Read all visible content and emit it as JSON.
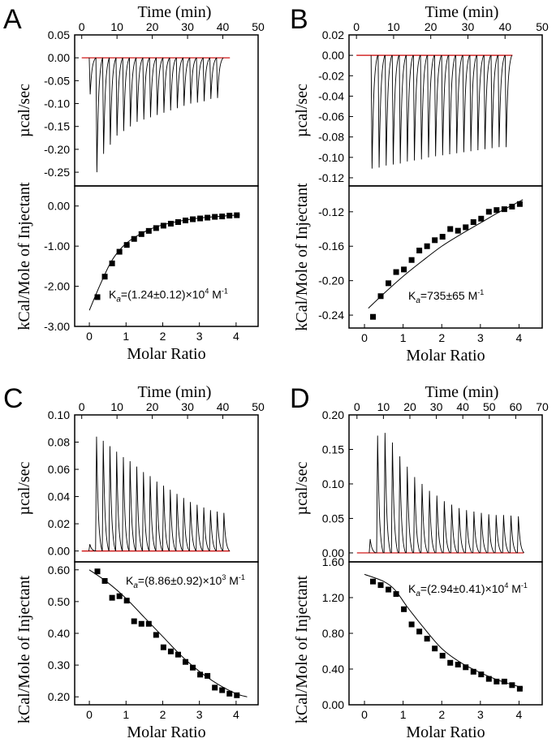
{
  "figure": {
    "background": "#ffffff",
    "trace_color": "#000000",
    "baseline_color": "#cc0000"
  },
  "chart_data": [
    {
      "panel": "A",
      "type": "line",
      "top": {
        "xlabel": "Time (min)",
        "ylabel": "µcal/sec",
        "xlim": [
          -2,
          50
        ],
        "ylim": [
          -0.28,
          0.05
        ],
        "xticks": [
          0,
          10,
          20,
          30,
          40,
          50
        ],
        "xtick_labels": [
          "0",
          "10",
          "20",
          "30",
          "40",
          "50"
        ],
        "yticks": [
          0.05,
          0.0,
          -0.05,
          -0.1,
          -0.15,
          -0.2,
          -0.25
        ],
        "ytick_labels": [
          "0.05",
          "0.00",
          "-0.05",
          "-0.10",
          "-0.15",
          "-0.20",
          "-0.25"
        ],
        "injection_times": [
          2.4,
          4.3,
          6.2,
          8.1,
          10.0,
          11.9,
          13.8,
          15.7,
          17.6,
          19.5,
          21.4,
          23.3,
          25.2,
          27.1,
          29.0,
          30.9,
          32.8,
          34.7,
          36.6,
          38.5
        ],
        "peak_heights": [
          -0.08,
          -0.25,
          -0.21,
          -0.19,
          -0.17,
          -0.16,
          -0.15,
          -0.14,
          -0.135,
          -0.13,
          -0.125,
          -0.12,
          -0.115,
          -0.11,
          -0.105,
          -0.1,
          -0.098,
          -0.095,
          -0.09,
          -0.088
        ],
        "baseline_range": [
          0,
          42
        ]
      },
      "bottom": {
        "xlabel": "Molar Ratio",
        "ylabel": "kCal/Mole of Injectant",
        "xlim": [
          -0.4,
          4.6
        ],
        "ylim": [
          -3.0,
          0.5
        ],
        "xticks": [
          0,
          1,
          2,
          3,
          4
        ],
        "xtick_labels": [
          "0",
          "1",
          "2",
          "3",
          "4"
        ],
        "yticks": [
          0.0,
          -1.0,
          -2.0,
          -3.0
        ],
        "ytick_labels": [
          "0.00",
          "-1.00",
          "-2.00",
          "-3.00"
        ],
        "x": [
          0.22,
          0.42,
          0.62,
          0.82,
          1.02,
          1.22,
          1.42,
          1.62,
          1.82,
          2.02,
          2.22,
          2.42,
          2.62,
          2.82,
          3.02,
          3.22,
          3.42,
          3.62,
          3.82,
          4.02
        ],
        "y": [
          -2.27,
          -1.76,
          -1.43,
          -1.14,
          -0.97,
          -0.82,
          -0.7,
          -0.62,
          -0.55,
          -0.49,
          -0.44,
          -0.4,
          -0.36,
          -0.33,
          -0.31,
          -0.29,
          -0.27,
          -0.26,
          -0.24,
          -0.23
        ],
        "fit_x": [
          0.0,
          0.3,
          0.6,
          0.9,
          1.2,
          1.6,
          2.0,
          2.5,
          3.0,
          3.5,
          4.1
        ],
        "fit_y": [
          -2.6,
          -1.95,
          -1.38,
          -1.02,
          -0.8,
          -0.6,
          -0.47,
          -0.37,
          -0.3,
          -0.26,
          -0.22
        ]
      },
      "annotation": {
        "prefix": "K",
        "subscript": "a",
        "value_text": "=(1.24±0.12)×10",
        "exponent": "4",
        "unit": " M",
        "unit_exp": "-1"
      }
    },
    {
      "panel": "B",
      "type": "line",
      "top": {
        "xlabel": "Time (min)",
        "ylabel": "µcal/sec",
        "xlim": [
          -2,
          50
        ],
        "ylim": [
          -0.128,
          0.02
        ],
        "xticks": [
          0,
          10,
          20,
          30,
          40,
          50
        ],
        "xtick_labels": [
          "0",
          "10",
          "20",
          "30",
          "40",
          "50"
        ],
        "yticks": [
          0.02,
          0.0,
          -0.02,
          -0.04,
          -0.06,
          -0.08,
          -0.1,
          -0.12
        ],
        "ytick_labels": [
          "0.02",
          "0.00",
          "-0.02",
          "-0.04",
          "-0.06",
          "-0.08",
          "-0.10",
          "-0.12"
        ],
        "injection_times": [
          4.2,
          6.1,
          8.0,
          9.9,
          11.8,
          13.7,
          15.6,
          17.5,
          19.4,
          21.3,
          23.2,
          25.1,
          27.0,
          28.9,
          30.8,
          32.7,
          34.6,
          36.5,
          38.4,
          40.3
        ],
        "peak_heights": [
          -0.111,
          -0.11,
          -0.108,
          -0.107,
          -0.106,
          -0.104,
          -0.103,
          -0.102,
          -0.1,
          -0.099,
          -0.098,
          -0.097,
          -0.096,
          -0.095,
          -0.094,
          -0.093,
          -0.092,
          -0.091,
          -0.09,
          -0.09
        ],
        "baseline_range": [
          0,
          42
        ]
      },
      "bottom": {
        "xlabel": "Molar Ratio",
        "ylabel": "kCal/Mole of Injectant",
        "xlim": [
          -0.4,
          4.6
        ],
        "ylim": [
          -0.255,
          -0.09
        ],
        "xticks": [
          0,
          1,
          2,
          3,
          4
        ],
        "xtick_labels": [
          "0",
          "1",
          "2",
          "3",
          "4"
        ],
        "yticks": [
          -0.12,
          -0.16,
          -0.2,
          -0.24
        ],
        "ytick_labels": [
          "-0.12",
          "-0.16",
          "-0.20",
          "-0.24"
        ],
        "x": [
          0.22,
          0.42,
          0.62,
          0.82,
          1.02,
          1.22,
          1.42,
          1.62,
          1.82,
          2.02,
          2.22,
          2.42,
          2.62,
          2.82,
          3.02,
          3.22,
          3.42,
          3.62,
          3.82,
          4.02
        ],
        "y": [
          -0.242,
          -0.218,
          -0.203,
          -0.19,
          -0.187,
          -0.176,
          -0.165,
          -0.16,
          -0.153,
          -0.149,
          -0.14,
          -0.142,
          -0.138,
          -0.132,
          -0.128,
          -0.12,
          -0.118,
          -0.117,
          -0.114,
          -0.111
        ],
        "fit_x": [
          0.1,
          0.5,
          1.0,
          1.5,
          2.0,
          2.5,
          3.0,
          3.5,
          4.1
        ],
        "fit_y": [
          -0.232,
          -0.215,
          -0.195,
          -0.177,
          -0.16,
          -0.146,
          -0.133,
          -0.12,
          -0.106
        ]
      },
      "annotation": {
        "prefix": "K",
        "subscript": "a",
        "value_text": "=735±65",
        "exponent": "",
        "unit": " M",
        "unit_exp": "-1"
      }
    },
    {
      "panel": "C",
      "type": "line",
      "top": {
        "xlabel": "Time (min)",
        "ylabel": "µcal/sec",
        "xlim": [
          -2,
          50
        ],
        "ylim": [
          -0.008,
          0.1
        ],
        "xticks": [
          0,
          10,
          20,
          30,
          40,
          50
        ],
        "xtick_labels": [
          "0",
          "10",
          "20",
          "30",
          "40",
          "50"
        ],
        "yticks": [
          0.1,
          0.08,
          0.06,
          0.04,
          0.02,
          0.0
        ],
        "ytick_labels": [
          "0.10",
          "0.08",
          "0.06",
          "0.04",
          "0.02",
          "0.00"
        ],
        "injection_times": [
          2.3,
          4.2,
          6.1,
          8.0,
          9.9,
          11.8,
          13.7,
          15.6,
          17.5,
          19.4,
          21.3,
          23.2,
          25.1,
          27.0,
          28.9,
          30.8,
          32.7,
          34.6,
          36.5,
          38.4,
          40.3
        ],
        "peak_heights": [
          0.005,
          0.084,
          0.081,
          0.077,
          0.073,
          0.069,
          0.066,
          0.062,
          0.058,
          0.055,
          0.051,
          0.048,
          0.045,
          0.042,
          0.039,
          0.036,
          0.034,
          0.032,
          0.03,
          0.029,
          0.028
        ],
        "baseline_range": [
          0,
          42
        ]
      },
      "bottom": {
        "xlabel": "Molar Ratio",
        "ylabel": "kCal/Mole of Injectant",
        "xlim": [
          -0.4,
          4.6
        ],
        "ylim": [
          0.175,
          0.625
        ],
        "xticks": [
          0,
          1,
          2,
          3,
          4
        ],
        "xtick_labels": [
          "0",
          "1",
          "2",
          "3",
          "4"
        ],
        "yticks": [
          0.6,
          0.5,
          0.4,
          0.3,
          0.2
        ],
        "ytick_labels": [
          "0.60",
          "0.50",
          "0.40",
          "0.30",
          "0.20"
        ],
        "x": [
          0.22,
          0.42,
          0.62,
          0.82,
          1.02,
          1.22,
          1.42,
          1.62,
          1.82,
          2.02,
          2.22,
          2.42,
          2.62,
          2.82,
          3.02,
          3.22,
          3.42,
          3.62,
          3.82,
          4.02
        ],
        "y": [
          0.595,
          0.565,
          0.512,
          0.517,
          0.503,
          0.438,
          0.43,
          0.43,
          0.395,
          0.356,
          0.343,
          0.333,
          0.31,
          0.292,
          0.27,
          0.266,
          0.229,
          0.221,
          0.21,
          0.205
        ],
        "fit_x": [
          0.0,
          0.5,
          1.0,
          1.5,
          2.0,
          2.5,
          3.0,
          3.5,
          4.0,
          4.3
        ],
        "fit_y": [
          0.6,
          0.56,
          0.51,
          0.45,
          0.39,
          0.33,
          0.28,
          0.24,
          0.21,
          0.2
        ]
      },
      "annotation": {
        "prefix": "K",
        "subscript": "a",
        "value_text": "=(8.86±0.92)×10",
        "exponent": "3",
        "unit": " M",
        "unit_exp": "-1"
      }
    },
    {
      "panel": "D",
      "type": "line",
      "top": {
        "xlabel": "Time (min)",
        "ylabel": "µcal/sec",
        "xlim": [
          -3,
          70
        ],
        "ylim": [
          -0.013,
          0.2
        ],
        "xticks": [
          0,
          10,
          20,
          30,
          40,
          50,
          60,
          70
        ],
        "xtick_labels": [
          "0",
          "10",
          "20",
          "30",
          "40",
          "50",
          "60",
          "70"
        ],
        "yticks": [
          0.2,
          0.15,
          0.1,
          0.05,
          0.0
        ],
        "ytick_labels": [
          "0.20",
          "0.15",
          "0.10",
          "0.05",
          "0.00"
        ],
        "injection_times": [
          5.0,
          7.8,
          10.6,
          13.4,
          16.2,
          19.0,
          21.8,
          24.6,
          27.4,
          30.2,
          33.0,
          35.8,
          38.6,
          41.4,
          44.2,
          47.0,
          49.8,
          52.6,
          55.4,
          58.2,
          61.0
        ],
        "peak_heights": [
          0.02,
          0.17,
          0.174,
          0.16,
          0.14,
          0.125,
          0.11,
          0.1,
          0.09,
          0.083,
          0.075,
          0.07,
          0.065,
          0.062,
          0.06,
          0.058,
          0.056,
          0.055,
          0.055,
          0.054,
          0.053
        ],
        "baseline_range": [
          0,
          63
        ]
      },
      "bottom": {
        "xlabel": "Molar Ratio",
        "ylabel": "kCal/Mole of Injectant",
        "xlim": [
          -0.4,
          4.6
        ],
        "ylim": [
          0.0,
          1.6
        ],
        "xticks": [
          0,
          1,
          2,
          3,
          4
        ],
        "xtick_labels": [
          "0",
          "1",
          "2",
          "3",
          "4"
        ],
        "yticks": [
          1.6,
          1.2,
          0.8,
          0.4,
          0.0
        ],
        "ytick_labels": [
          "1.60",
          "1.20",
          "0.80",
          "0.40",
          "0.00"
        ],
        "x": [
          0.22,
          0.42,
          0.62,
          0.82,
          1.02,
          1.22,
          1.42,
          1.62,
          1.82,
          2.02,
          2.22,
          2.42,
          2.62,
          2.82,
          3.02,
          3.22,
          3.42,
          3.62,
          3.82,
          4.02
        ],
        "y": [
          1.38,
          1.34,
          1.29,
          1.24,
          1.07,
          0.9,
          0.82,
          0.74,
          0.63,
          0.55,
          0.47,
          0.45,
          0.42,
          0.37,
          0.34,
          0.29,
          0.26,
          0.26,
          0.22,
          0.18
        ],
        "fit_x": [
          0.0,
          0.5,
          0.8,
          1.1,
          1.5,
          2.0,
          2.5,
          3.0,
          3.5,
          4.1
        ],
        "fit_y": [
          1.46,
          1.38,
          1.28,
          1.1,
          0.88,
          0.63,
          0.47,
          0.36,
          0.27,
          0.19
        ]
      },
      "annotation": {
        "prefix": "K",
        "subscript": "a",
        "value_text": "=(2.94±0.41)×10",
        "exponent": "4",
        "unit": " M",
        "unit_exp": "-1"
      }
    }
  ]
}
